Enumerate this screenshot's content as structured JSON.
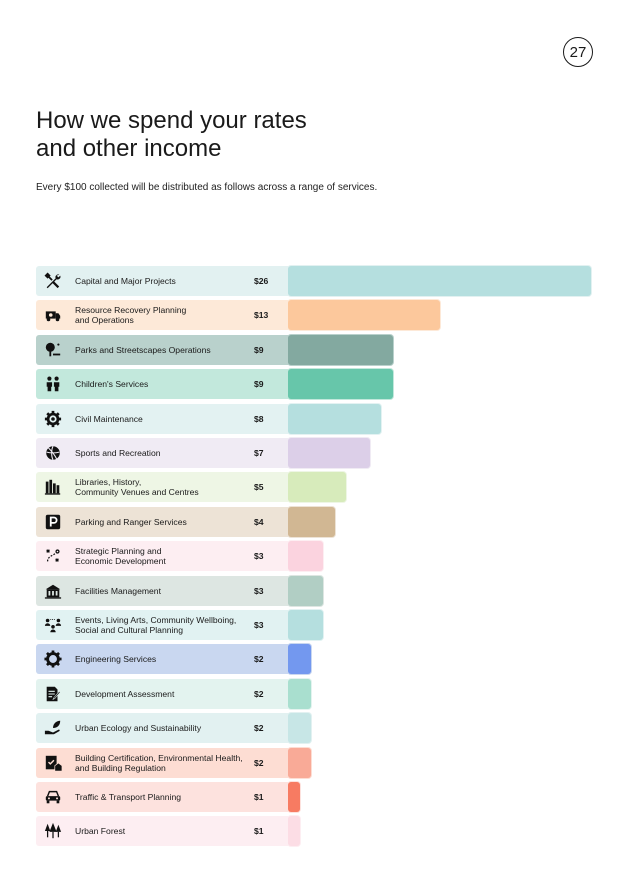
{
  "page_number": "27",
  "title_lines": [
    "How we spend your rates",
    "and other income"
  ],
  "subtitle": "Every $100 collected will be distributed as follows across a range of services.",
  "chart_data": {
    "type": "bar",
    "orientation": "horizontal",
    "title": "How we spend your rates and other income",
    "xlim": [
      0,
      26
    ],
    "categories": [
      "Capital and Major Projects",
      "Resource Recovery Planning and Operations",
      "Parks and Streetscapes Operations",
      "Children's Services",
      "Civil Maintenance",
      "Sports and Recreation",
      "Libraries, History, Community Venues and Centres",
      "Parking and Ranger Services",
      "Strategic Planning and Economic Development",
      "Facilities Management",
      "Events, Living Arts, Community Wellboing, Social and Cultural Planning",
      "Engineering Services",
      "Development Assessment",
      "Urban Ecology and Sustainability",
      "Building Certification, Environmental Health, and Building Regulation",
      "Traffic & Transport Planning",
      "Urban Forest"
    ],
    "values": [
      26,
      13,
      9,
      9,
      8,
      7,
      5,
      4,
      3,
      3,
      3,
      2,
      2,
      2,
      2,
      1,
      1
    ],
    "rows": [
      {
        "lines": [
          "Capital and Major Projects"
        ],
        "value_label": "$26",
        "value": 26,
        "icon": "tools-icon",
        "bg": "#e2f1f1",
        "bar": "#b5dfdf"
      },
      {
        "lines": [
          "Resource Recovery Planning",
          "and Operations"
        ],
        "value_label": "$13",
        "value": 13,
        "icon": "recycling-truck-icon",
        "bg": "#fde9d8",
        "bar": "#fcc89c"
      },
      {
        "lines": [
          "Parks and Streetscapes Operations"
        ],
        "value_label": "$9",
        "value": 9,
        "icon": "park-tree-icon",
        "bg": "#b9d1cc",
        "bar": "#83a9a0"
      },
      {
        "lines": [
          "Children's Services"
        ],
        "value_label": "$9",
        "value": 9,
        "icon": "children-icon",
        "bg": "#c2e8dc",
        "bar": "#67c6aa"
      },
      {
        "lines": [
          "Civil Maintenance"
        ],
        "value_label": "$8",
        "value": 8,
        "icon": "gear-icon",
        "bg": "#e3f2f2",
        "bar": "#b5dfdf"
      },
      {
        "lines": [
          "Sports and Recreation"
        ],
        "value_label": "$7",
        "value": 7,
        "icon": "ball-icon",
        "bg": "#f0ebf4",
        "bar": "#dccfe8"
      },
      {
        "lines": [
          "Libraries, History,",
          "Community Venues and Centres"
        ],
        "value_label": "$5",
        "value": 5,
        "icon": "books-icon",
        "bg": "#eef6e5",
        "bar": "#d7ebbb"
      },
      {
        "lines": [
          "Parking and Ranger Services"
        ],
        "value_label": "$4",
        "value": 4,
        "icon": "parking-icon",
        "bg": "#ede3d6",
        "bar": "#d1b793"
      },
      {
        "lines": [
          "Strategic Planning and",
          "Economic Development"
        ],
        "value_label": "$3",
        "value": 3,
        "icon": "strategy-icon",
        "bg": "#fdeef2",
        "bar": "#fbd3df"
      },
      {
        "lines": [
          "Facilities Management"
        ],
        "value_label": "$3",
        "value": 3,
        "icon": "building-icon",
        "bg": "#dde6e2",
        "bar": "#b1cec4"
      },
      {
        "lines": [
          "Events, Living Arts, Community Wellboing,",
          "Social and Cultural Planning"
        ],
        "value_label": "$3",
        "value": 3,
        "icon": "community-icon",
        "bg": "#e1f2f2",
        "bar": "#b5dfdf"
      },
      {
        "lines": [
          "Engineering Services"
        ],
        "value_label": "$2",
        "value": 2,
        "icon": "engineering-gear-icon",
        "bg": "#c9d7f0",
        "bar": "#7398ef"
      },
      {
        "lines": [
          "Development Assessment"
        ],
        "value_label": "$2",
        "value": 2,
        "icon": "document-edit-icon",
        "bg": "#e3f3ef",
        "bar": "#a9dfcf"
      },
      {
        "lines": [
          "Urban Ecology and Sustainability"
        ],
        "value_label": "$2",
        "value": 2,
        "icon": "hand-leaf-icon",
        "bg": "#e2f1f1",
        "bar": "#c7e6e6"
      },
      {
        "lines": [
          "Building Certification, Environmental Health,",
          "and Building Regulation"
        ],
        "value_label": "$2",
        "value": 2,
        "icon": "certificate-icon",
        "bg": "#fdddd3",
        "bar": "#f9aa97"
      },
      {
        "lines": [
          "Traffic & Transport Planning"
        ],
        "value_label": "$1",
        "value": 1,
        "icon": "car-icon",
        "bg": "#fde2de",
        "bar": "#f77b62"
      },
      {
        "lines": [
          "Urban Forest"
        ],
        "value_label": "$1",
        "value": 1,
        "icon": "trees-icon",
        "bg": "#fdeef2",
        "bar": "#fcdde5"
      }
    ]
  }
}
